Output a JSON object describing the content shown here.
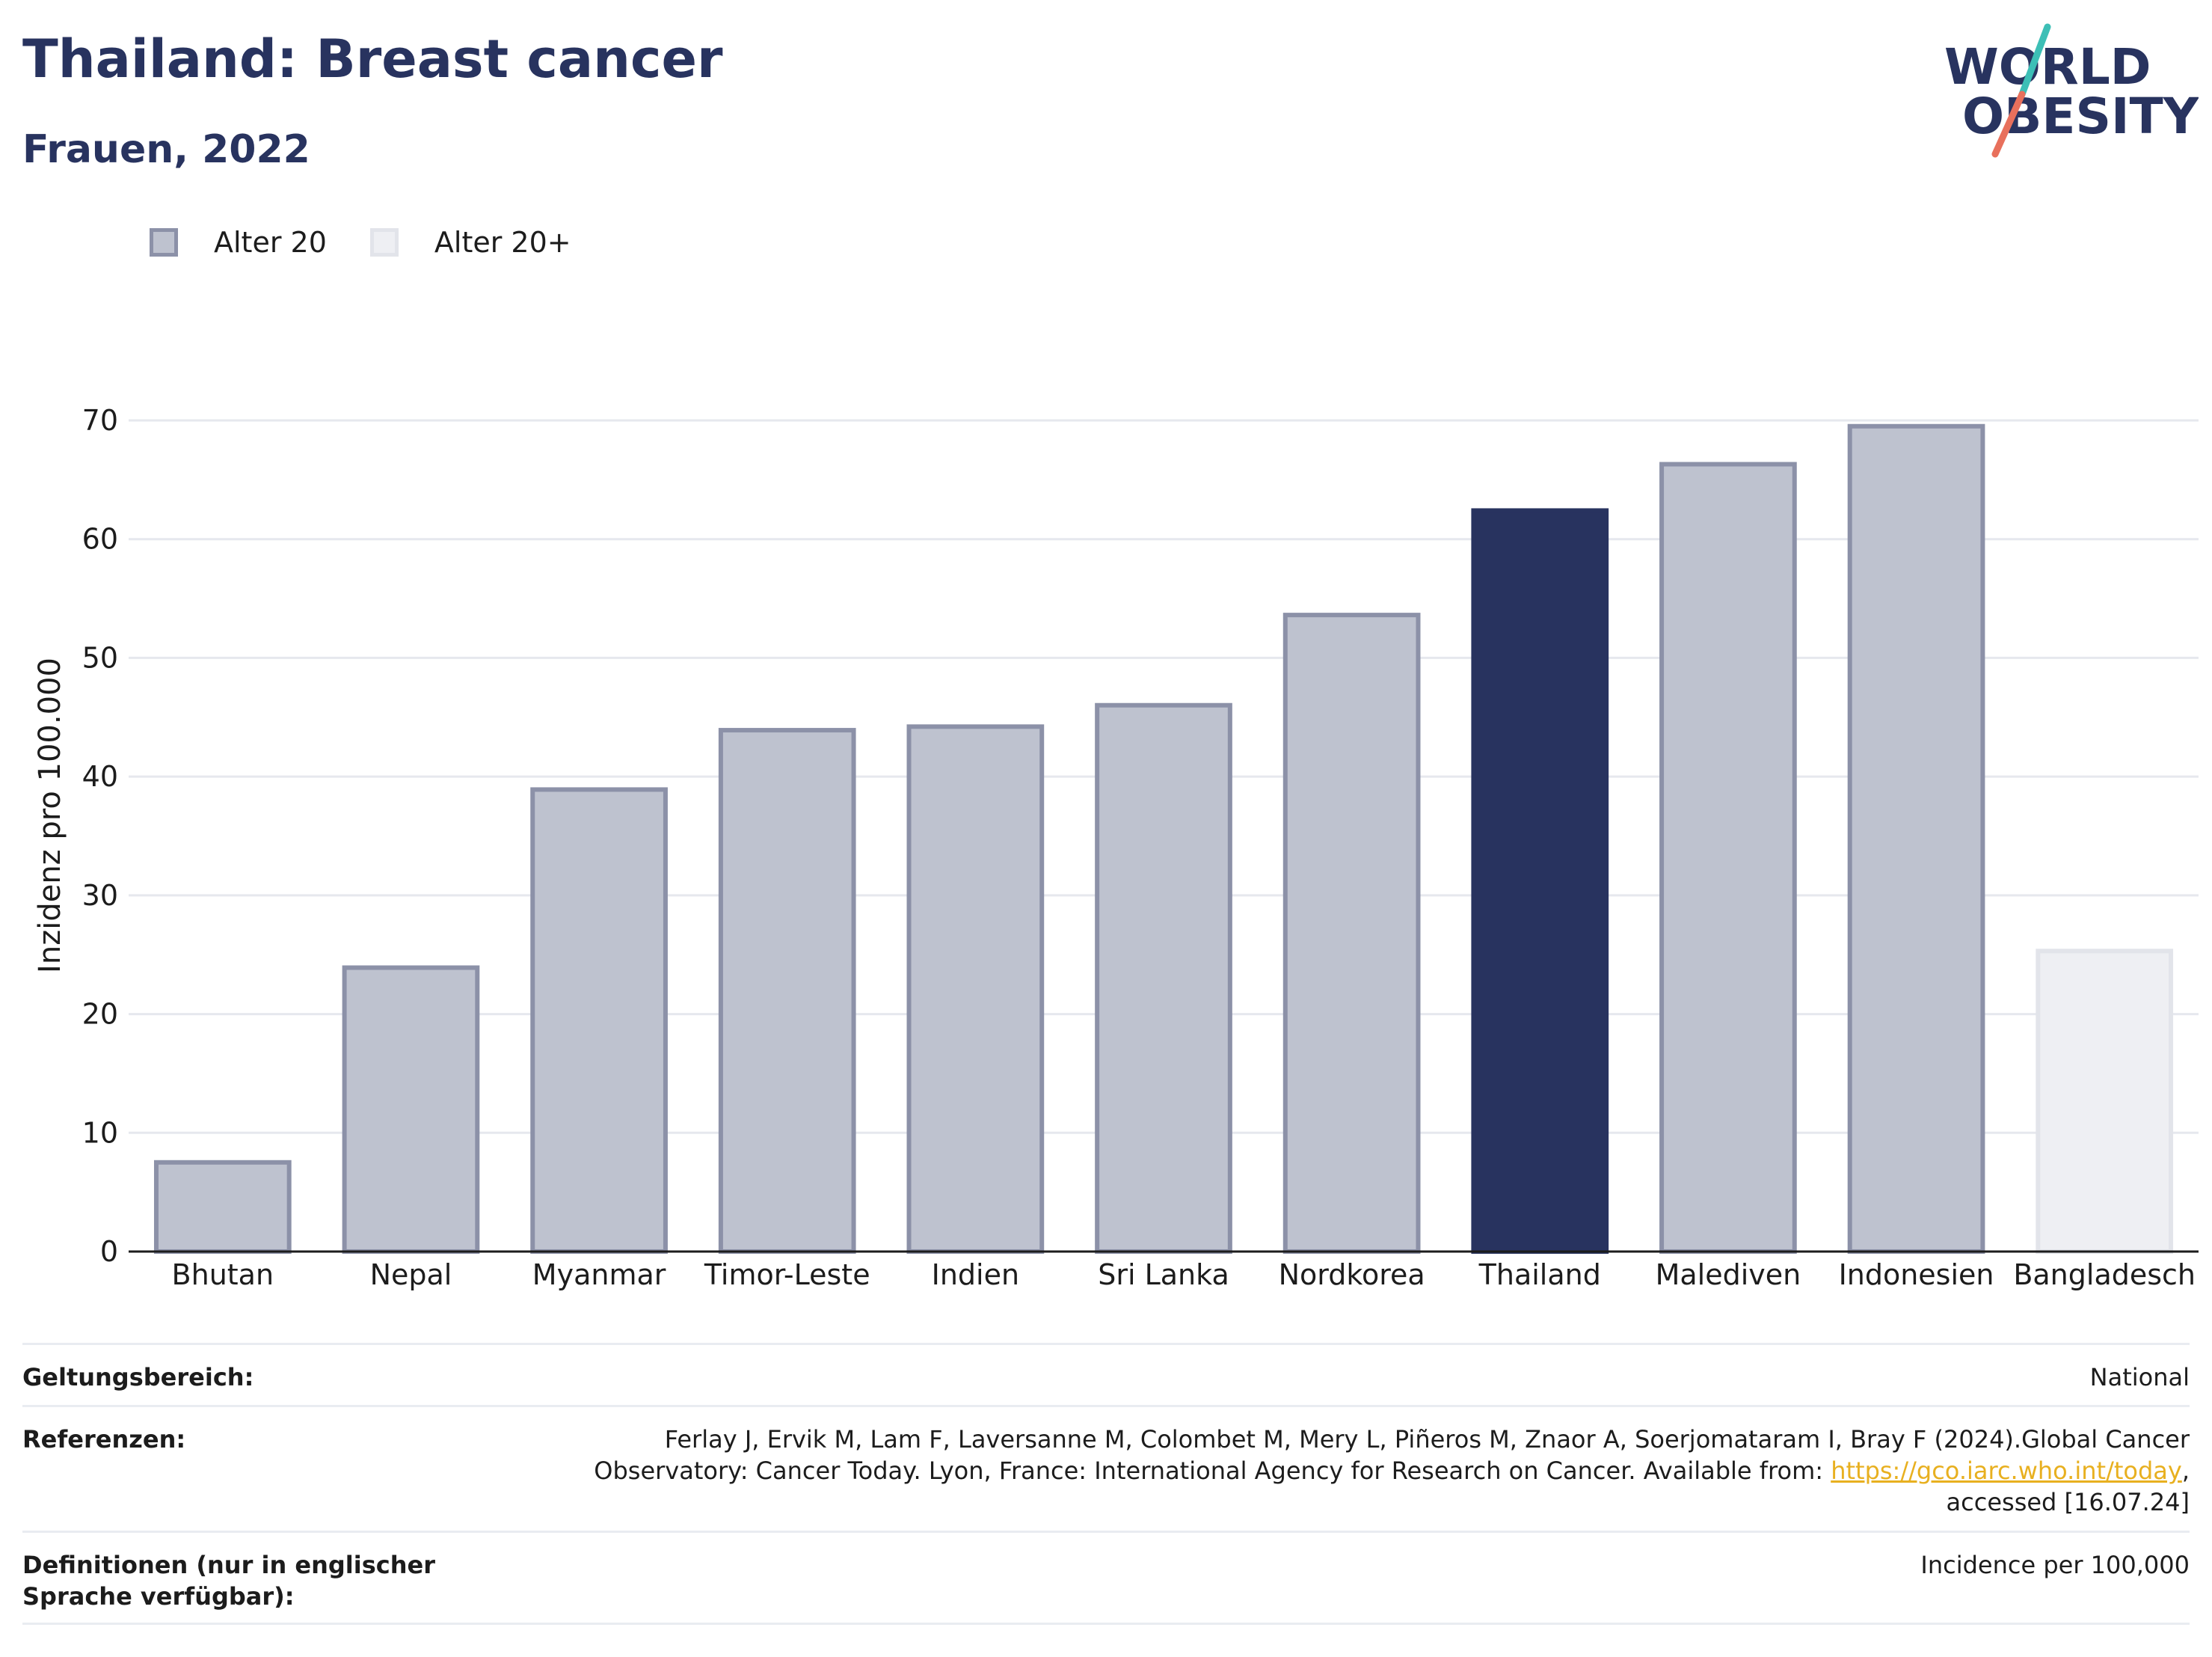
{
  "header": {
    "title": "Thailand: Breast cancer",
    "subtitle": "Frauen, 2022",
    "logo_line1": "WORLD",
    "logo_line2": "OBESITY"
  },
  "legend": [
    {
      "label": "Alter 20",
      "color": "#bec2cf"
    },
    {
      "label": "Alter 20+",
      "color": "#eeeff3"
    }
  ],
  "chart_data": {
    "type": "bar",
    "categories": [
      "Bhutan",
      "Nepal",
      "Myanmar",
      "Timor-Leste",
      "Indien",
      "Sri Lanka",
      "Nordkorea",
      "Thailand",
      "Malediven",
      "Indonesien",
      "Bangladesch"
    ],
    "values": [
      7.7,
      24.1,
      39.1,
      44.1,
      44.4,
      46.2,
      53.8,
      62.6,
      66.5,
      69.7,
      25.5
    ],
    "groups": [
      "Alter 20",
      "Alter 20",
      "Alter 20",
      "Alter 20",
      "Alter 20",
      "Alter 20",
      "Alter 20",
      "Alter 20",
      "Alter 20",
      "Alter 20",
      "Alter 20+"
    ],
    "highlight": "Thailand",
    "ylabel": "Inzidenz pro 100.000",
    "xlabel": "",
    "ylim": [
      0,
      70
    ],
    "yticks": [
      0,
      10,
      20,
      30,
      40,
      50,
      60,
      70
    ],
    "grid": true,
    "legend_position": "top-left",
    "colors": {
      "Alter 20": "#bec2cf",
      "Alter 20 border": "#8c91a8",
      "Alter 20+": "#eeeff3",
      "Alter 20+ border": "#e2e4ea",
      "highlight": "#28335f"
    }
  },
  "info": {
    "scope_label": "Geltungsbereich:",
    "scope_value": "National",
    "references_label": "Referenzen:",
    "references_line1": "Ferlay J, Ervik M, Lam F, Laversanne M, Colombet M, Mery L, Piñeros M, Znaor A, Soerjomataram I, Bray F (2024).Global Cancer",
    "references_line2_pre": "Observatory: Cancer Today. Lyon, France: International Agency for Research on Cancer. Available from: ",
    "references_link": "https://gco.iarc.who.int/today",
    "references_line2_post": ",",
    "references_line3": "accessed [16.07.24]",
    "definitions_label": "Definitionen (nur in englischer Sprache verfügbar):",
    "definitions_value": "Incidence per 100,000"
  }
}
